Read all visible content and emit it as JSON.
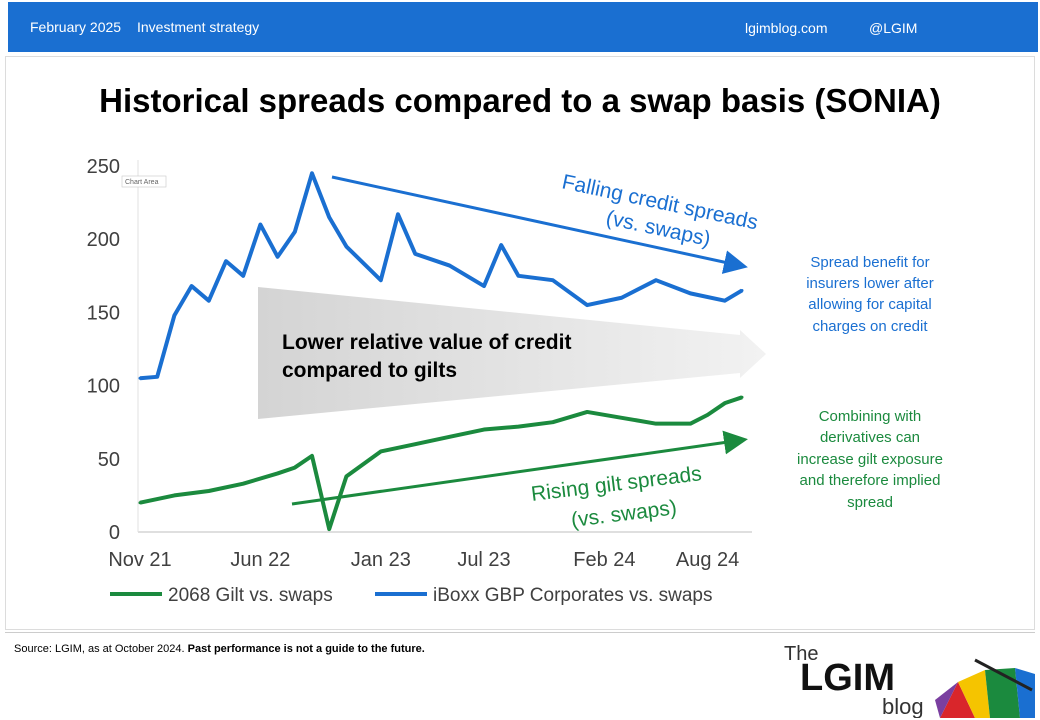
{
  "header": {
    "date": "February 2025",
    "category": "Investment strategy",
    "site": "lgimblog.com",
    "handle": "@LGIM"
  },
  "title": "Historical spreads compared to a swap basis (SONIA)",
  "chart_data": {
    "type": "line",
    "x_ticks": [
      "Nov 21",
      "Jun 22",
      "Jan 23",
      "Jul 23",
      "Feb 24",
      "Aug 24"
    ],
    "y_ticks": [
      "0",
      "50",
      "100",
      "150",
      "200",
      "250"
    ],
    "ylim": [
      0,
      250
    ],
    "x_range": [
      "Nov 21",
      "Oct 24"
    ],
    "grid": false,
    "legend_placement": "bottom",
    "series": [
      {
        "name": "2068 Gilt vs. swaps",
        "color": "#1b8a3e",
        "x": [
          "Nov 21",
          "Jan 22",
          "Mar 22",
          "May 22",
          "Jul 22",
          "Aug 22",
          "Sep 22",
          "Oct 22",
          "Nov 22",
          "Jan 23",
          "Mar 23",
          "May 23",
          "Jul 23",
          "Sep 23",
          "Nov 23",
          "Jan 24",
          "Mar 24",
          "May 24",
          "Jul 24",
          "Aug 24",
          "Sep 24",
          "Oct 24"
        ],
        "y": [
          20,
          25,
          28,
          33,
          40,
          44,
          52,
          2,
          38,
          55,
          60,
          65,
          70,
          72,
          75,
          82,
          78,
          74,
          74,
          80,
          88,
          92
        ]
      },
      {
        "name": "iBoxx GBP Corporates vs. swaps",
        "color": "#1a6fd1",
        "x": [
          "Nov 21",
          "Dec 21",
          "Jan 22",
          "Feb 22",
          "Mar 22",
          "Apr 22",
          "May 22",
          "Jun 22",
          "Jul 22",
          "Aug 22",
          "Sep 22",
          "Oct 22",
          "Nov 22",
          "Jan 23",
          "Feb 23",
          "Mar 23",
          "May 23",
          "Jul 23",
          "Aug 23",
          "Sep 23",
          "Nov 23",
          "Jan 24",
          "Mar 24",
          "May 24",
          "Jul 24",
          "Sep 24",
          "Oct 24"
        ],
        "y": [
          105,
          106,
          148,
          168,
          158,
          185,
          175,
          210,
          188,
          205,
          245,
          215,
          195,
          172,
          217,
          190,
          182,
          168,
          196,
          175,
          172,
          155,
          160,
          172,
          163,
          158,
          165
        ]
      }
    ]
  },
  "annotations": {
    "falling": [
      "Falling credit spreads",
      "(vs. swaps)"
    ],
    "rising": [
      "Rising gilt spreads",
      "(vs. swaps)"
    ],
    "middle": [
      "Lower relative value of credit",
      "compared to gilts"
    ],
    "right_blue": [
      "Spread benefit for",
      "insurers lower after",
      "allowing for capital",
      "charges on credit"
    ],
    "right_green": [
      "Combining with",
      "derivatives can",
      "increase gilt exposure",
      "and therefore implied",
      "spread"
    ],
    "chart_area_tag": "Chart Area"
  },
  "source": {
    "text": "Source: LGIM,  as at October 2024. ",
    "disclaimer": "Past performance is not a guide to the future."
  },
  "logo": {
    "the": "The",
    "name": "LGIM",
    "blog": "blog"
  }
}
